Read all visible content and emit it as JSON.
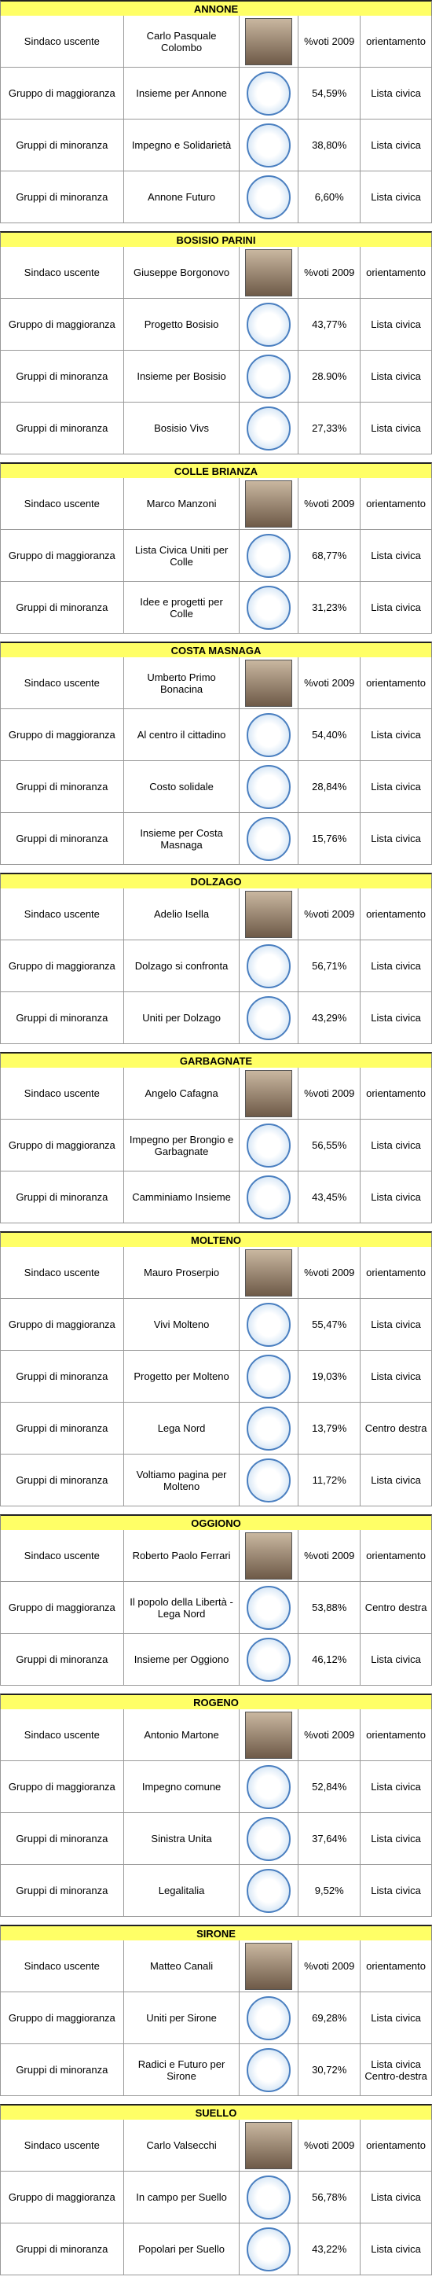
{
  "sections": [
    {
      "title": "ANNONE",
      "rows": [
        [
          "Sindaco uscente",
          "Carlo Pasquale Colombo",
          "%voti 2009",
          "orientamento"
        ],
        [
          "Gruppo di maggioranza",
          "Insieme per Annone",
          "54,59%",
          "Lista civica"
        ],
        [
          "Gruppi di minoranza",
          "Impegno e Solidarietà",
          "38,80%",
          "Lista civica"
        ],
        [
          "Gruppi di minoranza",
          "Annone Futuro",
          "6,60%",
          "Lista civica"
        ]
      ]
    },
    {
      "title": "BOSISIO PARINI",
      "rows": [
        [
          "Sindaco uscente",
          "Giuseppe Borgonovo",
          "%voti 2009",
          "orientamento"
        ],
        [
          "Gruppo di maggioranza",
          "Progetto Bosisio",
          "43,77%",
          "Lista civica"
        ],
        [
          "Gruppi di minoranza",
          "Insieme per Bosisio",
          "28.90%",
          "Lista civica"
        ],
        [
          "Gruppi di minoranza",
          "Bosisio Vivs",
          "27,33%",
          "Lista civica"
        ]
      ]
    },
    {
      "title": "COLLE BRIANZA",
      "rows": [
        [
          "Sindaco uscente",
          "Marco Manzoni",
          "%voti 2009",
          "orientamento"
        ],
        [
          "Gruppo di maggioranza",
          "Lista Civica Uniti per Colle",
          "68,77%",
          "Lista civica"
        ],
        [
          "Gruppi di minoranza",
          "Idee e progetti per Colle",
          "31,23%",
          "Lista civica"
        ]
      ]
    },
    {
      "title": "COSTA MASNAGA",
      "rows": [
        [
          "Sindaco uscente",
          "Umberto Primo Bonacina",
          "%voti 2009",
          "orientamento"
        ],
        [
          "Gruppo di maggioranza",
          "Al centro il cittadino",
          "54,40%",
          "Lista civica"
        ],
        [
          "Gruppi di minoranza",
          "Costo solidale",
          "28,84%",
          "Lista civica"
        ],
        [
          "Gruppi di minoranza",
          "Insieme per Costa Masnaga",
          "15,76%",
          "Lista civica"
        ]
      ]
    },
    {
      "title": "DOLZAGO",
      "rows": [
        [
          "Sindaco uscente",
          "Adelio Isella",
          "%voti 2009",
          "orientamento"
        ],
        [
          "Gruppo di maggioranza",
          "Dolzago si confronta",
          "56,71%",
          "Lista civica"
        ],
        [
          "Gruppi di minoranza",
          "Uniti per Dolzago",
          "43,29%",
          "Lista civica"
        ]
      ]
    },
    {
      "title": "GARBAGNATE",
      "rows": [
        [
          "Sindaco uscente",
          "Angelo Cafagna",
          "%voti 2009",
          "orientamento"
        ],
        [
          "Gruppo di maggioranza",
          "Impegno per Brongio e Garbagnate",
          "56,55%",
          "Lista civica"
        ],
        [
          "Gruppi di minoranza",
          "Camminiamo Insieme",
          "43,45%",
          "Lista civica"
        ]
      ]
    },
    {
      "title": "MOLTENO",
      "rows": [
        [
          "Sindaco uscente",
          "Mauro Proserpio",
          "%voti 2009",
          "orientamento"
        ],
        [
          "Gruppo di maggioranza",
          "Vivi Molteno",
          "55,47%",
          "Lista civica"
        ],
        [
          "Gruppi di minoranza",
          "Progetto per Molteno",
          "19,03%",
          "Lista civica"
        ],
        [
          "Gruppi di minoranza",
          "Lega Nord",
          "13,79%",
          "Centro destra"
        ],
        [
          "Gruppi di minoranza",
          "Voltiamo pagina per Molteno",
          "11,72%",
          "Lista civica"
        ]
      ]
    },
    {
      "title": "OGGIONO",
      "rows": [
        [
          "Sindaco uscente",
          "Roberto Paolo Ferrari",
          "%voti 2009",
          "orientamento"
        ],
        [
          "Gruppo di maggioranza",
          "Il popolo della Libertà - Lega Nord",
          "53,88%",
          "Centro destra"
        ],
        [
          "Gruppi di minoranza",
          "Insieme per Oggiono",
          "46,12%",
          "Lista civica"
        ]
      ]
    },
    {
      "title": "ROGENO",
      "rows": [
        [
          "Sindaco uscente",
          "Antonio Martone",
          "%voti 2009",
          "orientamento"
        ],
        [
          "Gruppo di maggioranza",
          "Impegno comune",
          "52,84%",
          "Lista civica"
        ],
        [
          "Gruppi di minoranza",
          "Sinistra Unita",
          "37,64%",
          "Lista civica"
        ],
        [
          "Gruppi di minoranza",
          "Legalitalia",
          "9,52%",
          "Lista civica"
        ]
      ]
    },
    {
      "title": "SIRONE",
      "rows": [
        [
          "Sindaco uscente",
          "Matteo Canali",
          "%voti 2009",
          "orientamento"
        ],
        [
          "Gruppo di maggioranza",
          "Uniti per Sirone",
          "69,28%",
          "Lista civica"
        ],
        [
          "Gruppi di minoranza",
          "Radici e Futuro per Sirone",
          "30,72%",
          "Lista civica\nCentro-destra"
        ]
      ]
    },
    {
      "title": "SUELLO",
      "rows": [
        [
          "Sindaco uscente",
          "Carlo Valsecchi",
          "%voti 2009",
          "orientamento"
        ],
        [
          "Gruppo di maggioranza",
          "In campo per Suello",
          "56,78%",
          "Lista civica"
        ],
        [
          "Gruppi di minoranza",
          "Popolari per Suello",
          "43,22%",
          "Lista civica"
        ]
      ]
    }
  ]
}
